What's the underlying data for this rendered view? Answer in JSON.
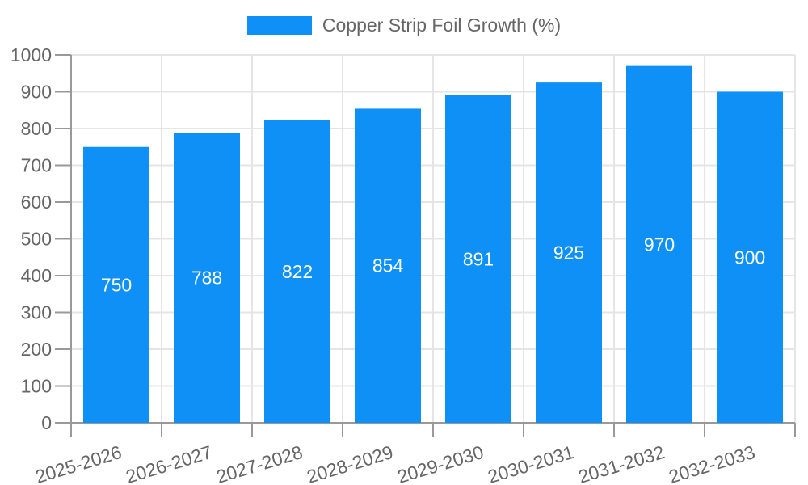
{
  "legend": {
    "label": "Copper Strip Foil Growth (%)"
  },
  "chart_data": {
    "type": "bar",
    "title": "Copper Strip Foil Growth (%)",
    "series_name": "Copper Strip Foil Growth (%)",
    "categories": [
      "2025-2026",
      "2026-2027",
      "2027-2028",
      "2028-2029",
      "2029-2030",
      "2030-2031",
      "2031-2032",
      "2032-2033"
    ],
    "values": [
      750,
      788,
      822,
      854,
      891,
      925,
      970,
      900
    ],
    "value_labels": [
      "750",
      "788",
      "822",
      "854",
      "891",
      "925",
      "970",
      "900"
    ],
    "ylim": [
      0,
      1000
    ],
    "ytick_step": 100,
    "ytick_labels": [
      "0",
      "100",
      "200",
      "300",
      "400",
      "500",
      "600",
      "700",
      "800",
      "900",
      "1000"
    ],
    "grid": true,
    "legend_position": "top-center",
    "x_label_rotation_deg": -17,
    "colors": {
      "bar": "#0E90F7",
      "bar_value_label": "#FFFFFF",
      "axis_text": "#666666",
      "grid_line": "#E5E5E5",
      "axis_line": "#999999",
      "background": "#FFFFFF"
    }
  }
}
